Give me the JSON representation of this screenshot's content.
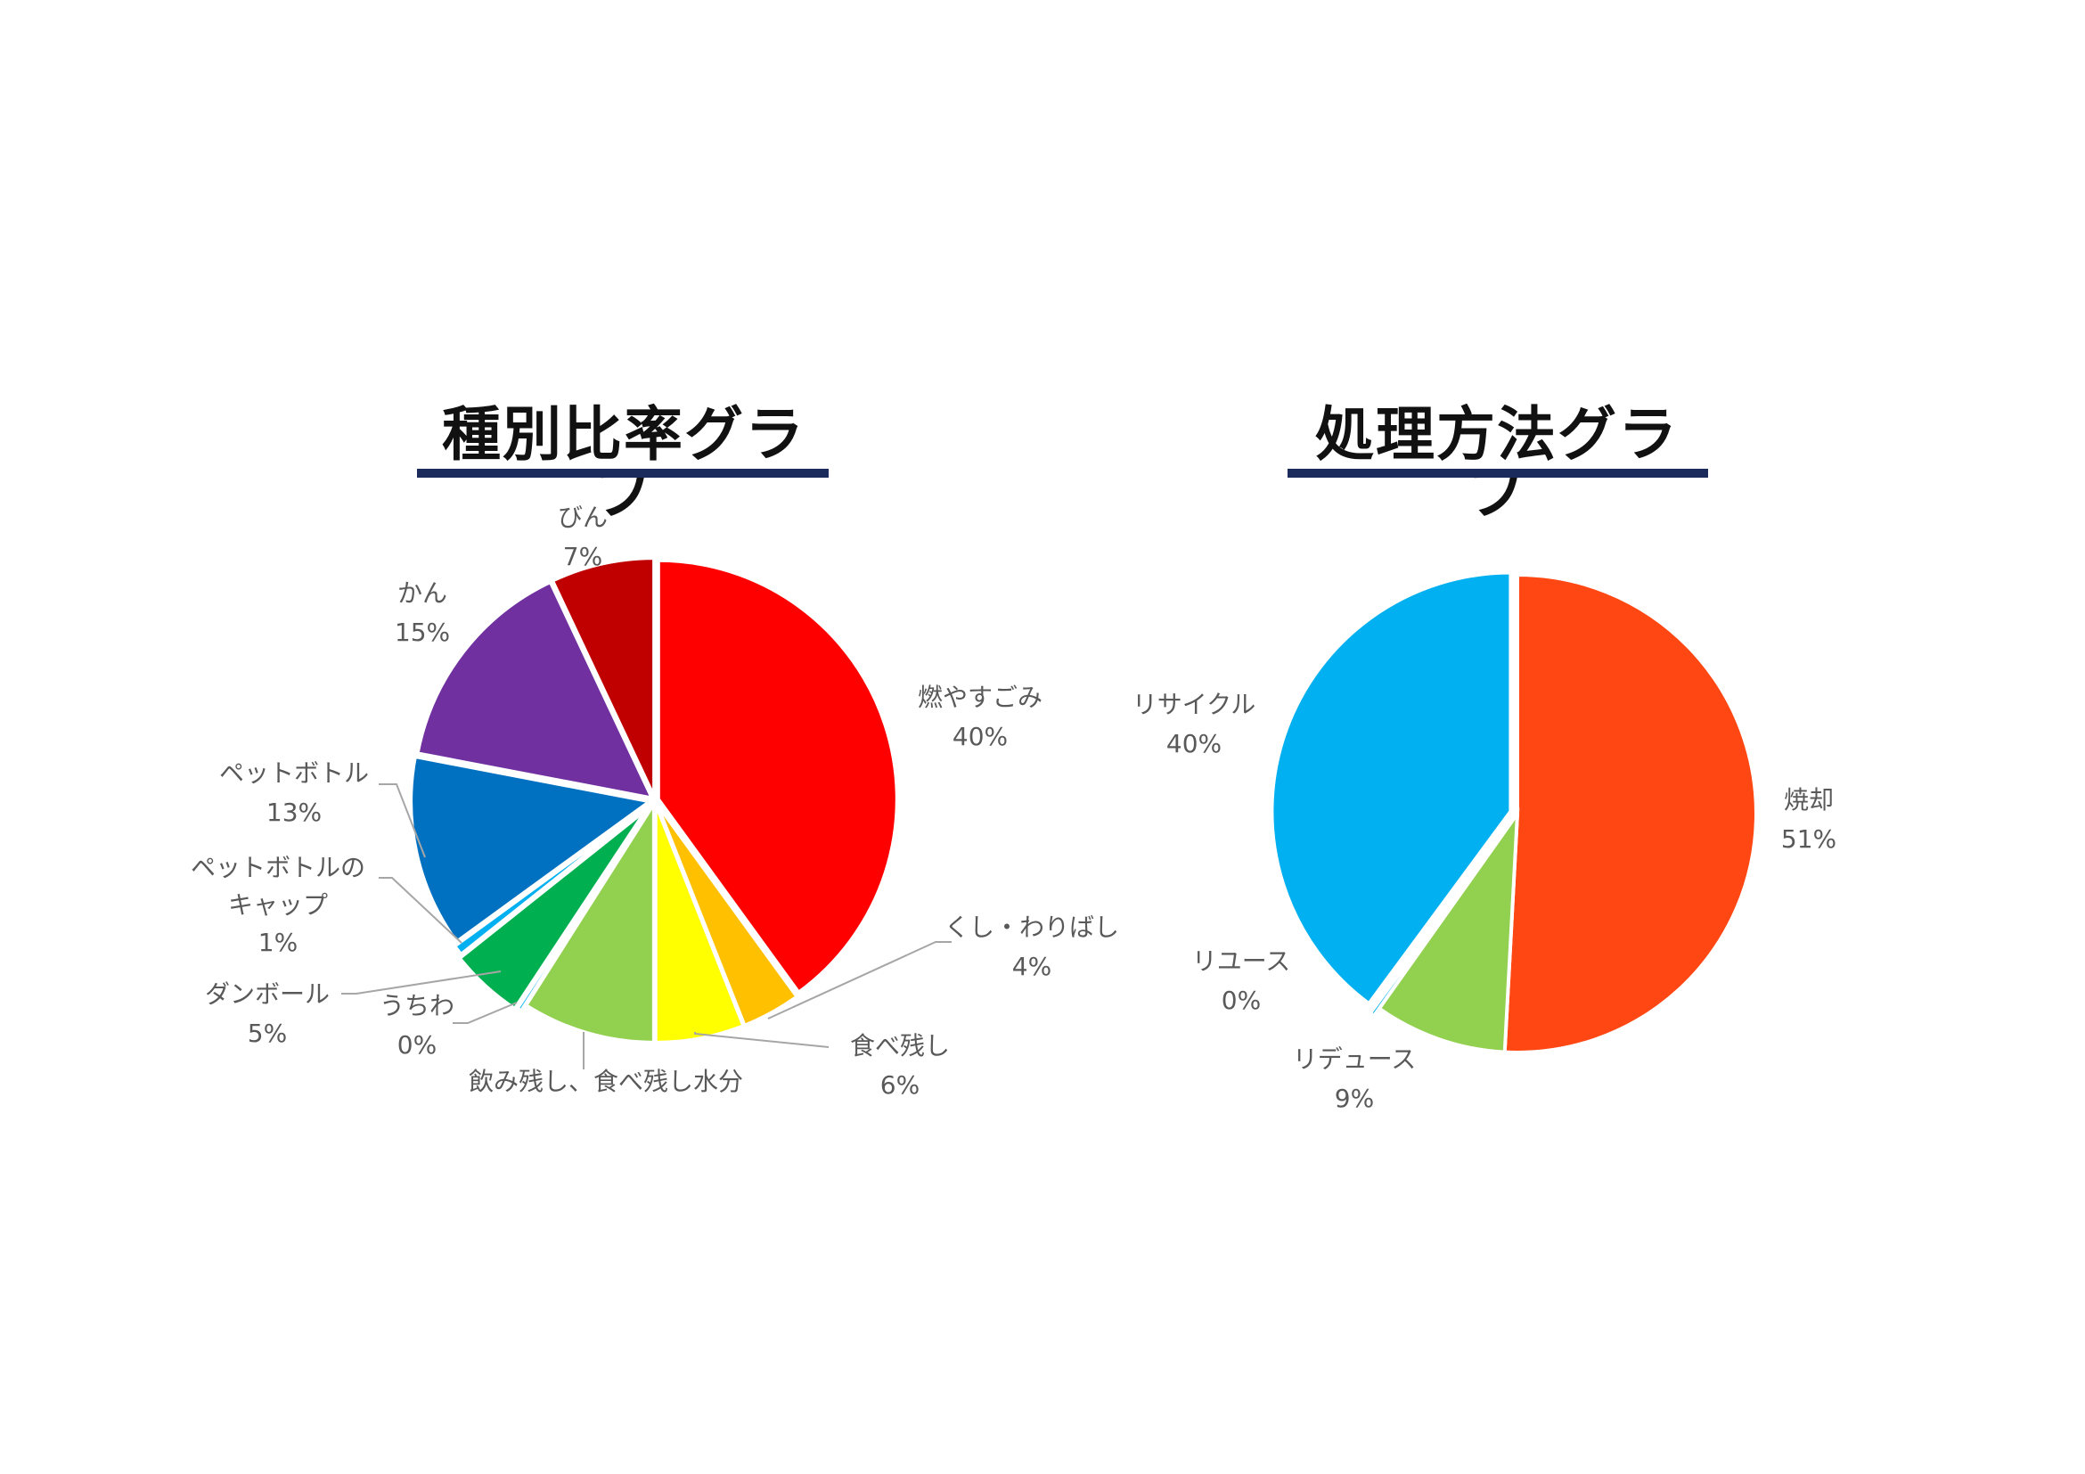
{
  "chart_data": [
    {
      "type": "pie",
      "title": "種別比率グラフ",
      "slices": [
        {
          "name": "燃やすごみ",
          "value": 40,
          "label": "40%",
          "color": "#ff0000"
        },
        {
          "name": "くし・わりばし",
          "value": 4,
          "label": "4%",
          "color": "#ffc000"
        },
        {
          "name": "食べ残し",
          "value": 6,
          "label": "6%",
          "color": "#ffff00"
        },
        {
          "name": "飲み残し、食べ残し水分",
          "value": 9,
          "label": "",
          "color": "#92d050"
        },
        {
          "name": "うちわ",
          "value": 0.3,
          "label": "0%",
          "color": "#00b0f0"
        },
        {
          "name": "ダンボール",
          "value": 5,
          "label": "5%",
          "color": "#00b050"
        },
        {
          "name": "ペットボトルのキャップ",
          "value": 0.7,
          "label": "1%",
          "color": "#00b0f0"
        },
        {
          "name": "ペットボトル",
          "value": 13,
          "label": "13%",
          "color": "#0070c0"
        },
        {
          "name": "かん",
          "value": 15,
          "label": "15%",
          "color": "#7030a0"
        },
        {
          "name": "びん",
          "value": 7,
          "label": "7%",
          "color": "#c00000"
        }
      ]
    },
    {
      "type": "pie",
      "title": "処理方法グラフ",
      "slices": [
        {
          "name": "焼却",
          "value": 51,
          "label": "51%",
          "color": "#ff4713"
        },
        {
          "name": "リデュース",
          "value": 9,
          "label": "9%",
          "color": "#92d050"
        },
        {
          "name": "リユース",
          "value": 0.3,
          "label": "0%",
          "color": "#00b0f0"
        },
        {
          "name": "リサイクル",
          "value": 40,
          "label": "40%",
          "color": "#00b0f0"
        }
      ]
    }
  ]
}
